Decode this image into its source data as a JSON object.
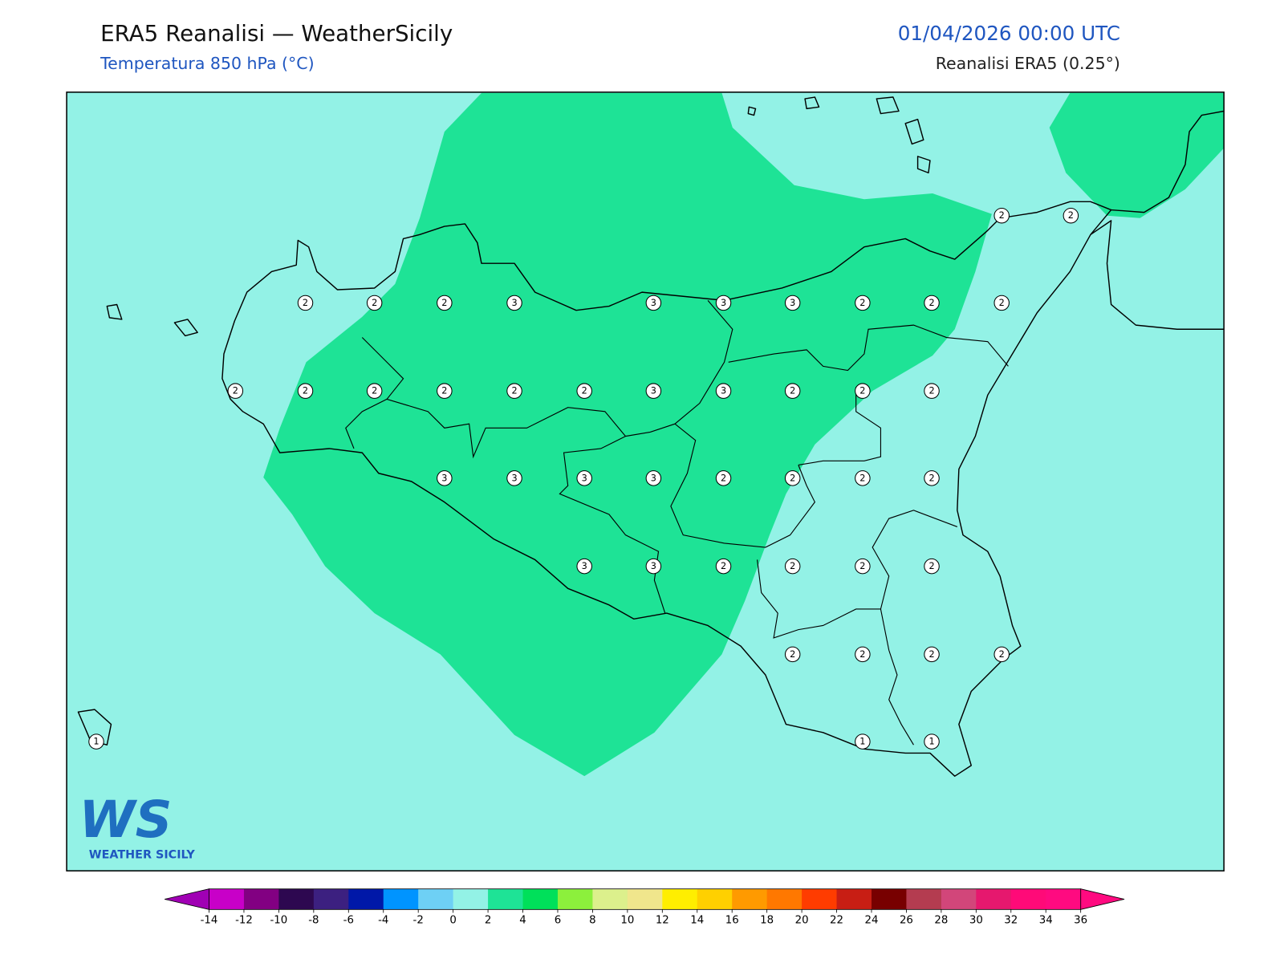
{
  "header": {
    "title": "ERA5 Reanalisi — WeatherSicily",
    "subtitle": "Temperatura 850 hPa (°C)",
    "date": "01/04/2026 00:00 UTC",
    "source": "Reanalisi ERA5 (0.25°)"
  },
  "map": {
    "background_color": "#93f2e6",
    "band_color": "#1ee396",
    "stations": [
      2,
      2,
      2,
      2,
      2,
      3,
      3,
      3,
      3,
      2,
      2,
      2,
      2,
      2,
      2,
      2,
      2,
      2,
      3,
      3,
      2,
      2,
      2,
      3,
      3,
      3,
      3,
      2,
      2,
      2,
      2,
      3,
      3,
      2,
      2,
      2,
      2,
      2,
      2,
      2,
      2,
      1,
      1,
      1
    ]
  },
  "logo": {
    "mark": "WS",
    "text": "WEATHER SICILY"
  },
  "colorbar": {
    "ticks": [
      -14,
      -12,
      -10,
      -8,
      -6,
      -4,
      -2,
      0,
      2,
      4,
      6,
      8,
      10,
      12,
      14,
      16,
      18,
      20,
      22,
      24,
      26,
      28,
      30,
      32,
      34,
      36
    ],
    "under_color": "#a000b4",
    "colors": [
      "#c800c8",
      "#820082",
      "#2d0850",
      "#3c2080",
      "#0018a8",
      "#0094ff",
      "#6ed0f5",
      "#93f2e6",
      "#1ee396",
      "#00e05a",
      "#8cf03c",
      "#dcf08c",
      "#f0e68c",
      "#ffee00",
      "#ffd000",
      "#ff9a00",
      "#ff7800",
      "#ff3c00",
      "#c81e14",
      "#780000",
      "#b43c50",
      "#d2467a",
      "#e6186e",
      "#ff0a78",
      "#ff0a80"
    ],
    "over_color": "#ff0a80"
  }
}
